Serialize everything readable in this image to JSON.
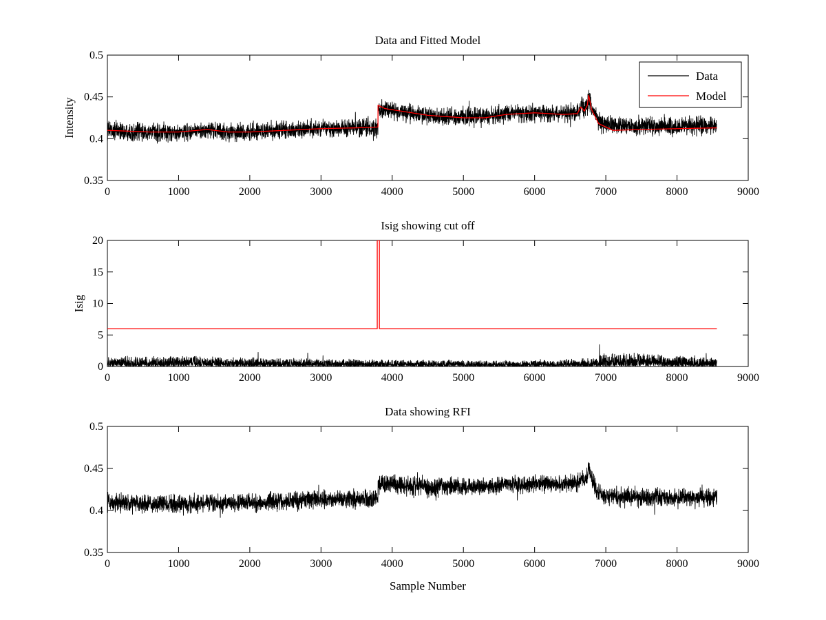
{
  "chart_data": [
    {
      "type": "line",
      "title": "Data and Fitted Model",
      "xlabel": "",
      "ylabel": "Intensity",
      "xlim": [
        0,
        9000
      ],
      "ylim": [
        0.35,
        0.5
      ],
      "xticks": [
        "0",
        "1000",
        "2000",
        "3000",
        "4000",
        "5000",
        "6000",
        "7000",
        "8000",
        "9000"
      ],
      "yticks": [
        "0.35",
        "0.4",
        "0.45",
        "0.5"
      ],
      "grid": false,
      "legend": {
        "position": "top-right",
        "entries": [
          "Data",
          "Model"
        ]
      },
      "series": [
        {
          "name": "Data",
          "color": "#000000",
          "style": "noisy",
          "noise": 0.005,
          "points": [
            [
              0,
              0.41
            ],
            [
              600,
              0.407
            ],
            [
              1000,
              0.407
            ],
            [
              1400,
              0.41
            ],
            [
              1700,
              0.408
            ],
            [
              2000,
              0.408
            ],
            [
              2500,
              0.41
            ],
            [
              3000,
              0.412
            ],
            [
              3500,
              0.413
            ],
            [
              3800,
              0.414
            ],
            [
              3801,
              0.436
            ],
            [
              4000,
              0.433
            ],
            [
              4500,
              0.428
            ],
            [
              5000,
              0.426
            ],
            [
              5300,
              0.426
            ],
            [
              5600,
              0.43
            ],
            [
              6000,
              0.431
            ],
            [
              6400,
              0.43
            ],
            [
              6620,
              0.432
            ],
            [
              6660,
              0.44
            ],
            [
              6700,
              0.435
            ],
            [
              6740,
              0.438
            ],
            [
              6760,
              0.45
            ],
            [
              6800,
              0.438
            ],
            [
              6900,
              0.42
            ],
            [
              7000,
              0.416
            ],
            [
              7500,
              0.415
            ],
            [
              8000,
              0.415
            ],
            [
              8560,
              0.416
            ]
          ]
        },
        {
          "name": "Model",
          "color": "#ff0000",
          "style": "smooth",
          "points": [
            [
              0,
              0.41
            ],
            [
              600,
              0.408
            ],
            [
              1000,
              0.408
            ],
            [
              1400,
              0.411
            ],
            [
              1700,
              0.408
            ],
            [
              2000,
              0.408
            ],
            [
              2500,
              0.41
            ],
            [
              3000,
              0.412
            ],
            [
              3500,
              0.413
            ],
            [
              3800,
              0.414
            ],
            [
              3801,
              0.44
            ],
            [
              3900,
              0.436
            ],
            [
              4500,
              0.428
            ],
            [
              5000,
              0.425
            ],
            [
              5300,
              0.425
            ],
            [
              5600,
              0.429
            ],
            [
              6000,
              0.431
            ],
            [
              6400,
              0.429
            ],
            [
              6600,
              0.43
            ],
            [
              6650,
              0.438
            ],
            [
              6700,
              0.433
            ],
            [
              6740,
              0.44
            ],
            [
              6760,
              0.452
            ],
            [
              6800,
              0.435
            ],
            [
              6900,
              0.418
            ],
            [
              7100,
              0.41
            ],
            [
              7500,
              0.411
            ],
            [
              8000,
              0.412
            ],
            [
              8560,
              0.413
            ]
          ]
        }
      ]
    },
    {
      "type": "line",
      "title": "Isig showing cut off",
      "xlabel": "",
      "ylabel": "Isig",
      "xlim": [
        0,
        9000
      ],
      "ylim": [
        0,
        20
      ],
      "xticks": [
        "0",
        "1000",
        "2000",
        "3000",
        "4000",
        "5000",
        "6000",
        "7000",
        "8000",
        "9000"
      ],
      "yticks": [
        "0",
        "5",
        "10",
        "15",
        "20"
      ],
      "grid": false,
      "series": [
        {
          "color": "#000000",
          "style": "spiky",
          "amplitude": [
            [
              0,
              1.6
            ],
            [
              1000,
              1.8
            ],
            [
              2000,
              1.5
            ],
            [
              3000,
              1.3
            ],
            [
              4000,
              1.2
            ],
            [
              5000,
              1.0
            ],
            [
              6000,
              1.0
            ],
            [
              6800,
              1.4
            ],
            [
              7000,
              2.3
            ],
            [
              8000,
              2.0
            ],
            [
              8560,
              1.6
            ]
          ],
          "points": [
            [
              0,
              0
            ],
            [
              8560,
              0
            ]
          ]
        },
        {
          "color": "#ff0000",
          "style": "smooth",
          "points": [
            [
              0,
              6
            ],
            [
              3790,
              6
            ],
            [
              3790,
              20
            ],
            [
              3820,
              20
            ],
            [
              3820,
              6
            ],
            [
              8560,
              6
            ]
          ]
        }
      ]
    },
    {
      "type": "line",
      "title": "Data showing RFI",
      "xlabel": "Sample Number",
      "ylabel": "",
      "xlim": [
        0,
        9000
      ],
      "ylim": [
        0.35,
        0.5
      ],
      "xticks": [
        "0",
        "1000",
        "2000",
        "3000",
        "4000",
        "5000",
        "6000",
        "7000",
        "8000",
        "9000"
      ],
      "yticks": [
        "0.35",
        "0.4",
        "0.45",
        "0.5"
      ],
      "grid": false,
      "series": [
        {
          "color": "#000000",
          "style": "noisy",
          "noise": 0.005,
          "points": [
            [
              0,
              0.41
            ],
            [
              600,
              0.407
            ],
            [
              1000,
              0.407
            ],
            [
              1400,
              0.409
            ],
            [
              2000,
              0.409
            ],
            [
              2500,
              0.411
            ],
            [
              3000,
              0.413
            ],
            [
              3500,
              0.414
            ],
            [
              3800,
              0.415
            ],
            [
              3801,
              0.432
            ],
            [
              4000,
              0.431
            ],
            [
              4500,
              0.428
            ],
            [
              5000,
              0.428
            ],
            [
              5300,
              0.428
            ],
            [
              5600,
              0.431
            ],
            [
              6000,
              0.432
            ],
            [
              6400,
              0.431
            ],
            [
              6620,
              0.432
            ],
            [
              6660,
              0.44
            ],
            [
              6700,
              0.436
            ],
            [
              6740,
              0.44
            ],
            [
              6760,
              0.452
            ],
            [
              6800,
              0.438
            ],
            [
              6900,
              0.42
            ],
            [
              7000,
              0.417
            ],
            [
              7500,
              0.416
            ],
            [
              8000,
              0.415
            ],
            [
              8560,
              0.416
            ]
          ]
        }
      ]
    }
  ]
}
